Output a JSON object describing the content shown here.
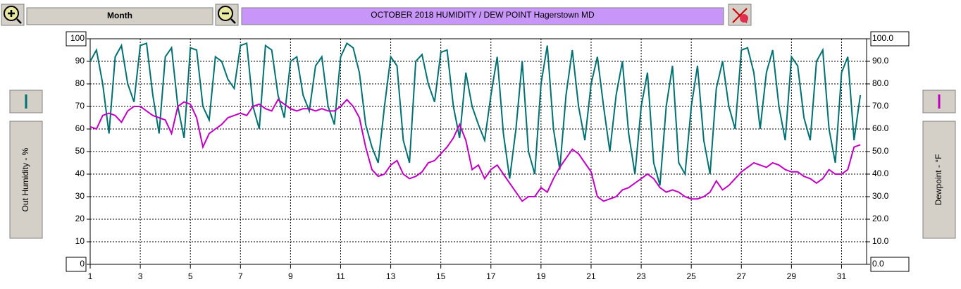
{
  "ui": {
    "range_button": "Month"
  },
  "chart_data": {
    "type": "line",
    "title": "OCTOBER   2018    HUMIDITY / DEW POINT  Hagerstown MD",
    "x": [
      1,
      1.25,
      1.5,
      1.75,
      2,
      2.25,
      2.5,
      2.75,
      3,
      3.25,
      3.5,
      3.75,
      4,
      4.25,
      4.5,
      4.75,
      5,
      5.25,
      5.5,
      5.75,
      6,
      6.25,
      6.5,
      6.75,
      7,
      7.25,
      7.5,
      7.75,
      8,
      8.25,
      8.5,
      8.75,
      9,
      9.25,
      9.5,
      9.75,
      10,
      10.25,
      10.5,
      10.75,
      11,
      11.25,
      11.5,
      11.75,
      12,
      12.25,
      12.5,
      12.75,
      13,
      13.25,
      13.5,
      13.75,
      14,
      14.25,
      14.5,
      14.75,
      15,
      15.25,
      15.5,
      15.75,
      16,
      16.25,
      16.5,
      16.75,
      17,
      17.25,
      17.5,
      17.75,
      18,
      18.25,
      18.5,
      18.75,
      19,
      19.25,
      19.5,
      19.75,
      20,
      20.25,
      20.5,
      20.75,
      21,
      21.25,
      21.5,
      21.75,
      22,
      22.25,
      22.5,
      22.75,
      23,
      23.25,
      23.5,
      23.75,
      24,
      24.25,
      24.5,
      24.75,
      25,
      25.25,
      25.5,
      25.75,
      26,
      26.25,
      26.5,
      26.75,
      27,
      27.25,
      27.5,
      27.75,
      28,
      28.25,
      28.5,
      28.75,
      29,
      29.25,
      29.5,
      29.75,
      30,
      30.25,
      30.5,
      30.75,
      31,
      31.25,
      31.5,
      31.75
    ],
    "series": [
      {
        "name": "Out Humidity - %",
        "color": "#007070",
        "values": [
          90,
          95,
          80,
          58,
          92,
          97,
          80,
          72,
          97,
          98,
          75,
          58,
          92,
          96,
          70,
          56,
          96,
          95,
          70,
          64,
          92,
          90,
          82,
          78,
          97,
          98,
          70,
          60,
          97,
          95,
          75,
          65,
          90,
          92,
          75,
          68,
          88,
          92,
          70,
          62,
          92,
          98,
          96,
          85,
          62,
          52,
          45,
          70,
          92,
          88,
          55,
          45,
          90,
          93,
          80,
          72,
          94,
          95,
          70,
          56,
          85,
          70,
          62,
          55,
          75,
          92,
          58,
          38,
          60,
          90,
          50,
          40,
          80,
          97,
          60,
          42,
          75,
          95,
          70,
          55,
          80,
          92,
          70,
          50,
          75,
          90,
          58,
          40,
          70,
          85,
          45,
          35,
          70,
          88,
          45,
          40,
          70,
          88,
          55,
          40,
          78,
          90,
          70,
          60,
          95,
          96,
          85,
          60,
          85,
          95,
          70,
          55,
          92,
          88,
          65,
          55,
          90,
          95,
          60,
          45,
          85,
          92,
          55,
          75
        ]
      },
      {
        "name": "Dewpoint - °F",
        "color": "#c000c0",
        "axis": "y2",
        "values": [
          61,
          60,
          66,
          67,
          66,
          63,
          68,
          70,
          70,
          68,
          66,
          65,
          64,
          58,
          70,
          72,
          71,
          65,
          52,
          58,
          60,
          62,
          65,
          66,
          67,
          66,
          70,
          71,
          69,
          68,
          73,
          71,
          69,
          68,
          69,
          69,
          68,
          69,
          68,
          68,
          70,
          73,
          70,
          65,
          52,
          42,
          39,
          40,
          44,
          46,
          40,
          38,
          39,
          41,
          45,
          46,
          49,
          52,
          56,
          62,
          55,
          42,
          44,
          38,
          42,
          44,
          40,
          36,
          32,
          28,
          30,
          30,
          34,
          32,
          38,
          43,
          47,
          51,
          49,
          45,
          41,
          30,
          28,
          29,
          30,
          33,
          34,
          36,
          38,
          40,
          38,
          34,
          32,
          33,
          32,
          30,
          29,
          29,
          30,
          32,
          37,
          33,
          35,
          38,
          41,
          43,
          45,
          44,
          43,
          45,
          44,
          42,
          41,
          41,
          39,
          38,
          36,
          38,
          42,
          40,
          40,
          42,
          52,
          53
        ]
      }
    ],
    "xlim": [
      1,
      32
    ],
    "xticks": [
      1,
      3,
      5,
      7,
      9,
      11,
      13,
      15,
      17,
      19,
      21,
      23,
      25,
      27,
      29,
      31
    ],
    "ylim": [
      0,
      100
    ],
    "yticks": [
      0,
      10,
      20,
      30,
      40,
      50,
      60,
      70,
      80,
      90,
      100
    ],
    "y2lim": [
      0,
      100
    ],
    "y2ticks": [
      {
        "value": 0,
        "label": "0.0"
      },
      {
        "value": 10,
        "label": "10.0"
      },
      {
        "value": 20,
        "label": "20.0"
      },
      {
        "value": 30,
        "label": "30.0"
      },
      {
        "value": 40,
        "label": "40.0"
      },
      {
        "value": 50,
        "label": "50.0"
      },
      {
        "value": 60,
        "label": "60.0"
      },
      {
        "value": 70,
        "label": "70.0"
      },
      {
        "value": 80,
        "label": "80.0"
      },
      {
        "value": 90,
        "label": "90.0"
      },
      {
        "value": 100,
        "label": "100.0"
      }
    ],
    "grid": true
  }
}
